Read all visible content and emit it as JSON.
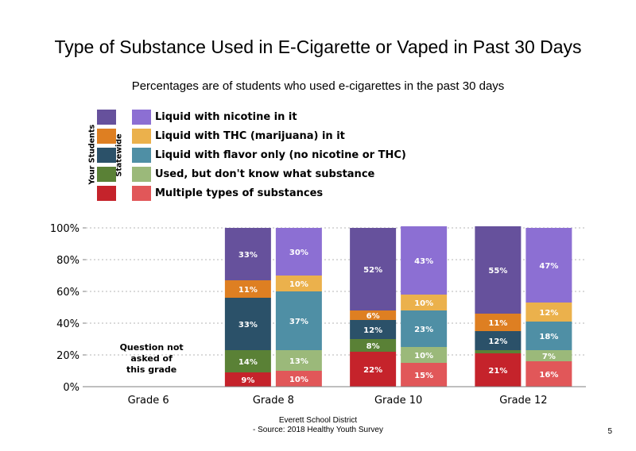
{
  "page_title": "Type of Substance Used in E-Cigarette or Vaped in Past 30 Days",
  "subtitle": "Percentages are of students who used e-cigarettes in the past 30 days",
  "legend": {
    "your_students_label": "Your Students",
    "statewide_label": "Statewide",
    "items": [
      {
        "label": "Liquid with nicotine in it",
        "local_color": "#66519c",
        "state_color": "#8c6fd3"
      },
      {
        "label": "Liquid with THC (marijuana) in it",
        "local_color": "#de7f22",
        "state_color": "#ebb14c"
      },
      {
        "label": "Liquid with flavor only (no nicotine or THC)",
        "local_color": "#2b5169",
        "state_color": "#4f8fa5"
      },
      {
        "label": "Used, but don't know what substance",
        "local_color": "#5a8136",
        "state_color": "#9bb97a"
      },
      {
        "label": "Multiple types of substances",
        "local_color": "#c5232b",
        "state_color": "#e15759"
      }
    ]
  },
  "chart_data": {
    "type": "bar",
    "stacked": true,
    "categories": [
      "Grade 6",
      "Grade 8",
      "Grade 10",
      "Grade 12"
    ],
    "ylim": [
      0,
      100
    ],
    "yticks": [
      "0%",
      "20%",
      "40%",
      "60%",
      "80%",
      "100%"
    ],
    "grid": true,
    "note": {
      "category": "Grade 6",
      "text": "Question not asked of this grade"
    },
    "groups": [
      {
        "category": "Grade 6",
        "bars": []
      },
      {
        "category": "Grade 8",
        "bars": [
          {
            "source": "Your Students",
            "values": [
              33,
              11,
              33,
              14,
              9
            ],
            "labels": [
              "33%",
              "11%",
              "33%",
              "14%",
              "9%"
            ]
          },
          {
            "source": "Statewide",
            "values": [
              30,
              10,
              37,
              13,
              10
            ],
            "labels": [
              "30%",
              "10%",
              "37%",
              "13%",
              "10%"
            ]
          }
        ]
      },
      {
        "category": "Grade 10",
        "bars": [
          {
            "source": "Your Students",
            "values": [
              52,
              6,
              12,
              8,
              22
            ],
            "labels": [
              "52%",
              "6%",
              "12%",
              "8%",
              "22%"
            ]
          },
          {
            "source": "Statewide",
            "values": [
              43,
              10,
              23,
              10,
              15
            ],
            "labels": [
              "43%",
              "10%",
              "23%",
              "10%",
              "15%"
            ]
          }
        ]
      },
      {
        "category": "Grade 12",
        "bars": [
          {
            "source": "Your Students",
            "values": [
              55,
              11,
              12,
              2,
              21
            ],
            "labels": [
              "55%",
              "11%",
              "12%",
              "",
              "21%"
            ]
          },
          {
            "source": "Statewide",
            "values": [
              47,
              12,
              18,
              7,
              16
            ],
            "labels": [
              "47%",
              "12%",
              "18%",
              "7%",
              "16%"
            ]
          }
        ]
      }
    ]
  },
  "footer": {
    "line1": "Everett School District",
    "line2": "- Source: 2018 Healthy Youth Survey"
  },
  "page_number": "5"
}
